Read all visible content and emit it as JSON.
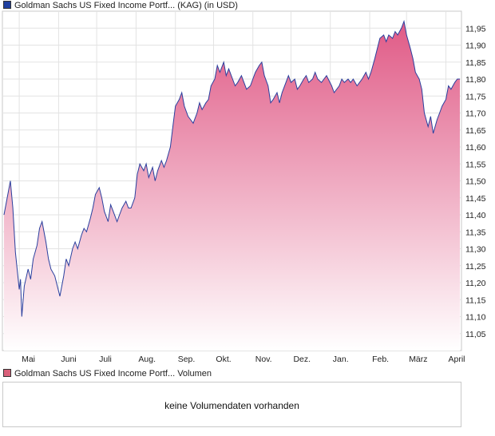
{
  "legend": {
    "price": "Goldman Sachs US Fixed Income Portf... (KAG)  (in USD)",
    "volume": "Goldman Sachs US Fixed Income Portf... Volumen"
  },
  "volume_panel": {
    "message": "keine Volumendaten vorhanden"
  },
  "colors": {
    "line": "#2a3f9e",
    "fill_top": "#e05a86",
    "fill_bottom": "#ffffff",
    "grid": "#e3e3e3",
    "frame": "#c9c9c9"
  },
  "chart_data": {
    "type": "area",
    "title": "",
    "xlabel": "",
    "ylabel": "",
    "ylim": [
      11.0,
      12.0
    ],
    "y_ticks": [
      "11,05",
      "11,10",
      "11,15",
      "11,20",
      "11,25",
      "11,30",
      "11,35",
      "11,40",
      "11,45",
      "11,50",
      "11,55",
      "11,60",
      "11,65",
      "11,70",
      "11,75",
      "11,80",
      "11,85",
      "11,90",
      "11,95"
    ],
    "x_ticks": [
      "Mai",
      "Juni",
      "Juli",
      "Aug.",
      "Sep.",
      "Okt.",
      "Nov.",
      "Dez.",
      "Jan.",
      "Feb.",
      "März",
      "April"
    ],
    "grid": true,
    "series": [
      {
        "points": [
          [
            "2023-04-19",
            11.4
          ],
          [
            "2023-04-21",
            11.44
          ],
          [
            "2023-04-24",
            11.5
          ],
          [
            "2023-04-26",
            11.42
          ],
          [
            "2023-04-28",
            11.29
          ],
          [
            "2023-05-01",
            11.18
          ],
          [
            "2023-05-02",
            11.21
          ],
          [
            "2023-05-03",
            11.1
          ],
          [
            "2023-05-05",
            11.19
          ],
          [
            "2023-05-08",
            11.24
          ],
          [
            "2023-05-10",
            11.21
          ],
          [
            "2023-05-12",
            11.27
          ],
          [
            "2023-05-15",
            11.31
          ],
          [
            "2023-05-17",
            11.36
          ],
          [
            "2023-05-19",
            11.38
          ],
          [
            "2023-05-22",
            11.32
          ],
          [
            "2023-05-24",
            11.27
          ],
          [
            "2023-05-26",
            11.24
          ],
          [
            "2023-05-29",
            11.22
          ],
          [
            "2023-05-31",
            11.19
          ],
          [
            "2023-06-02",
            11.16
          ],
          [
            "2023-06-05",
            11.22
          ],
          [
            "2023-06-07",
            11.27
          ],
          [
            "2023-06-09",
            11.25
          ],
          [
            "2023-06-12",
            11.3
          ],
          [
            "2023-06-14",
            11.32
          ],
          [
            "2023-06-16",
            11.3
          ],
          [
            "2023-06-19",
            11.34
          ],
          [
            "2023-06-21",
            11.36
          ],
          [
            "2023-06-23",
            11.35
          ],
          [
            "2023-06-26",
            11.39
          ],
          [
            "2023-06-28",
            11.42
          ],
          [
            "2023-06-30",
            11.46
          ],
          [
            "2023-07-03",
            11.48
          ],
          [
            "2023-07-05",
            11.45
          ],
          [
            "2023-07-07",
            11.41
          ],
          [
            "2023-07-10",
            11.38
          ],
          [
            "2023-07-12",
            11.43
          ],
          [
            "2023-07-14",
            11.41
          ],
          [
            "2023-07-17",
            11.38
          ],
          [
            "2023-07-19",
            11.4
          ],
          [
            "2023-07-21",
            11.42
          ],
          [
            "2023-07-24",
            11.44
          ],
          [
            "2023-07-26",
            11.42
          ],
          [
            "2023-07-28",
            11.42
          ],
          [
            "2023-07-31",
            11.45
          ],
          [
            "2023-08-02",
            11.52
          ],
          [
            "2023-08-04",
            11.55
          ],
          [
            "2023-08-07",
            11.53
          ],
          [
            "2023-08-09",
            11.55
          ],
          [
            "2023-08-11",
            11.51
          ],
          [
            "2023-08-14",
            11.54
          ],
          [
            "2023-08-16",
            11.5
          ],
          [
            "2023-08-18",
            11.53
          ],
          [
            "2023-08-21",
            11.56
          ],
          [
            "2023-08-23",
            11.54
          ],
          [
            "2023-08-25",
            11.56
          ],
          [
            "2023-08-28",
            11.6
          ],
          [
            "2023-08-30",
            11.66
          ],
          [
            "2023-09-01",
            11.72
          ],
          [
            "2023-09-04",
            11.74
          ],
          [
            "2023-09-06",
            11.76
          ],
          [
            "2023-09-08",
            11.72
          ],
          [
            "2023-09-11",
            11.69
          ],
          [
            "2023-09-13",
            11.68
          ],
          [
            "2023-09-15",
            11.67
          ],
          [
            "2023-09-18",
            11.7
          ],
          [
            "2023-09-20",
            11.73
          ],
          [
            "2023-09-22",
            11.71
          ],
          [
            "2023-09-25",
            11.73
          ],
          [
            "2023-09-27",
            11.74
          ],
          [
            "2023-09-29",
            11.78
          ],
          [
            "2023-10-02",
            11.8
          ],
          [
            "2023-10-04",
            11.84
          ],
          [
            "2023-10-06",
            11.82
          ],
          [
            "2023-10-09",
            11.85
          ],
          [
            "2023-10-11",
            11.81
          ],
          [
            "2023-10-13",
            11.83
          ],
          [
            "2023-10-16",
            11.8
          ],
          [
            "2023-10-18",
            11.78
          ],
          [
            "2023-10-20",
            11.79
          ],
          [
            "2023-10-23",
            11.81
          ],
          [
            "2023-10-25",
            11.79
          ],
          [
            "2023-10-27",
            11.77
          ],
          [
            "2023-10-30",
            11.78
          ],
          [
            "2023-11-01",
            11.8
          ],
          [
            "2023-11-03",
            11.82
          ],
          [
            "2023-11-06",
            11.84
          ],
          [
            "2023-11-08",
            11.85
          ],
          [
            "2023-11-10",
            11.81
          ],
          [
            "2023-11-13",
            11.78
          ],
          [
            "2023-11-15",
            11.73
          ],
          [
            "2023-11-17",
            11.74
          ],
          [
            "2023-11-20",
            11.76
          ],
          [
            "2023-11-22",
            11.73
          ],
          [
            "2023-11-24",
            11.76
          ],
          [
            "2023-11-27",
            11.79
          ],
          [
            "2023-11-29",
            11.81
          ],
          [
            "2023-12-01",
            11.79
          ],
          [
            "2023-12-04",
            11.8
          ],
          [
            "2023-12-06",
            11.77
          ],
          [
            "2023-12-08",
            11.78
          ],
          [
            "2023-12-11",
            11.8
          ],
          [
            "2023-12-13",
            11.81
          ],
          [
            "2023-12-15",
            11.79
          ],
          [
            "2023-12-18",
            11.8
          ],
          [
            "2023-12-20",
            11.82
          ],
          [
            "2023-12-22",
            11.8
          ],
          [
            "2023-12-25",
            11.79
          ],
          [
            "2023-12-27",
            11.8
          ],
          [
            "2023-12-29",
            11.81
          ],
          [
            "2024-01-02",
            11.78
          ],
          [
            "2024-01-04",
            11.76
          ],
          [
            "2024-01-08",
            11.78
          ],
          [
            "2024-01-10",
            11.8
          ],
          [
            "2024-01-12",
            11.79
          ],
          [
            "2024-01-15",
            11.8
          ],
          [
            "2024-01-17",
            11.79
          ],
          [
            "2024-01-19",
            11.8
          ],
          [
            "2024-01-22",
            11.78
          ],
          [
            "2024-01-24",
            11.79
          ],
          [
            "2024-01-26",
            11.8
          ],
          [
            "2024-01-29",
            11.82
          ],
          [
            "2024-01-31",
            11.8
          ],
          [
            "2024-02-02",
            11.82
          ],
          [
            "2024-02-05",
            11.86
          ],
          [
            "2024-02-07",
            11.89
          ],
          [
            "2024-02-09",
            11.92
          ],
          [
            "2024-02-12",
            11.93
          ],
          [
            "2024-02-14",
            11.91
          ],
          [
            "2024-02-16",
            11.93
          ],
          [
            "2024-02-19",
            11.92
          ],
          [
            "2024-02-21",
            11.94
          ],
          [
            "2024-02-23",
            11.93
          ],
          [
            "2024-02-26",
            11.95
          ],
          [
            "2024-02-28",
            11.97
          ],
          [
            "2024-03-01",
            11.93
          ],
          [
            "2024-03-04",
            11.89
          ],
          [
            "2024-03-06",
            11.86
          ],
          [
            "2024-03-08",
            11.82
          ],
          [
            "2024-03-11",
            11.8
          ],
          [
            "2024-03-13",
            11.77
          ],
          [
            "2024-03-15",
            11.7
          ],
          [
            "2024-03-18",
            11.66
          ],
          [
            "2024-03-20",
            11.69
          ],
          [
            "2024-03-22",
            11.64
          ],
          [
            "2024-03-25",
            11.68
          ],
          [
            "2024-03-27",
            11.7
          ],
          [
            "2024-03-29",
            11.72
          ],
          [
            "2024-04-01",
            11.74
          ],
          [
            "2024-04-03",
            11.78
          ],
          [
            "2024-04-05",
            11.77
          ],
          [
            "2024-04-08",
            11.79
          ],
          [
            "2024-04-10",
            11.8
          ],
          [
            "2024-04-12",
            11.8
          ]
        ]
      }
    ]
  }
}
